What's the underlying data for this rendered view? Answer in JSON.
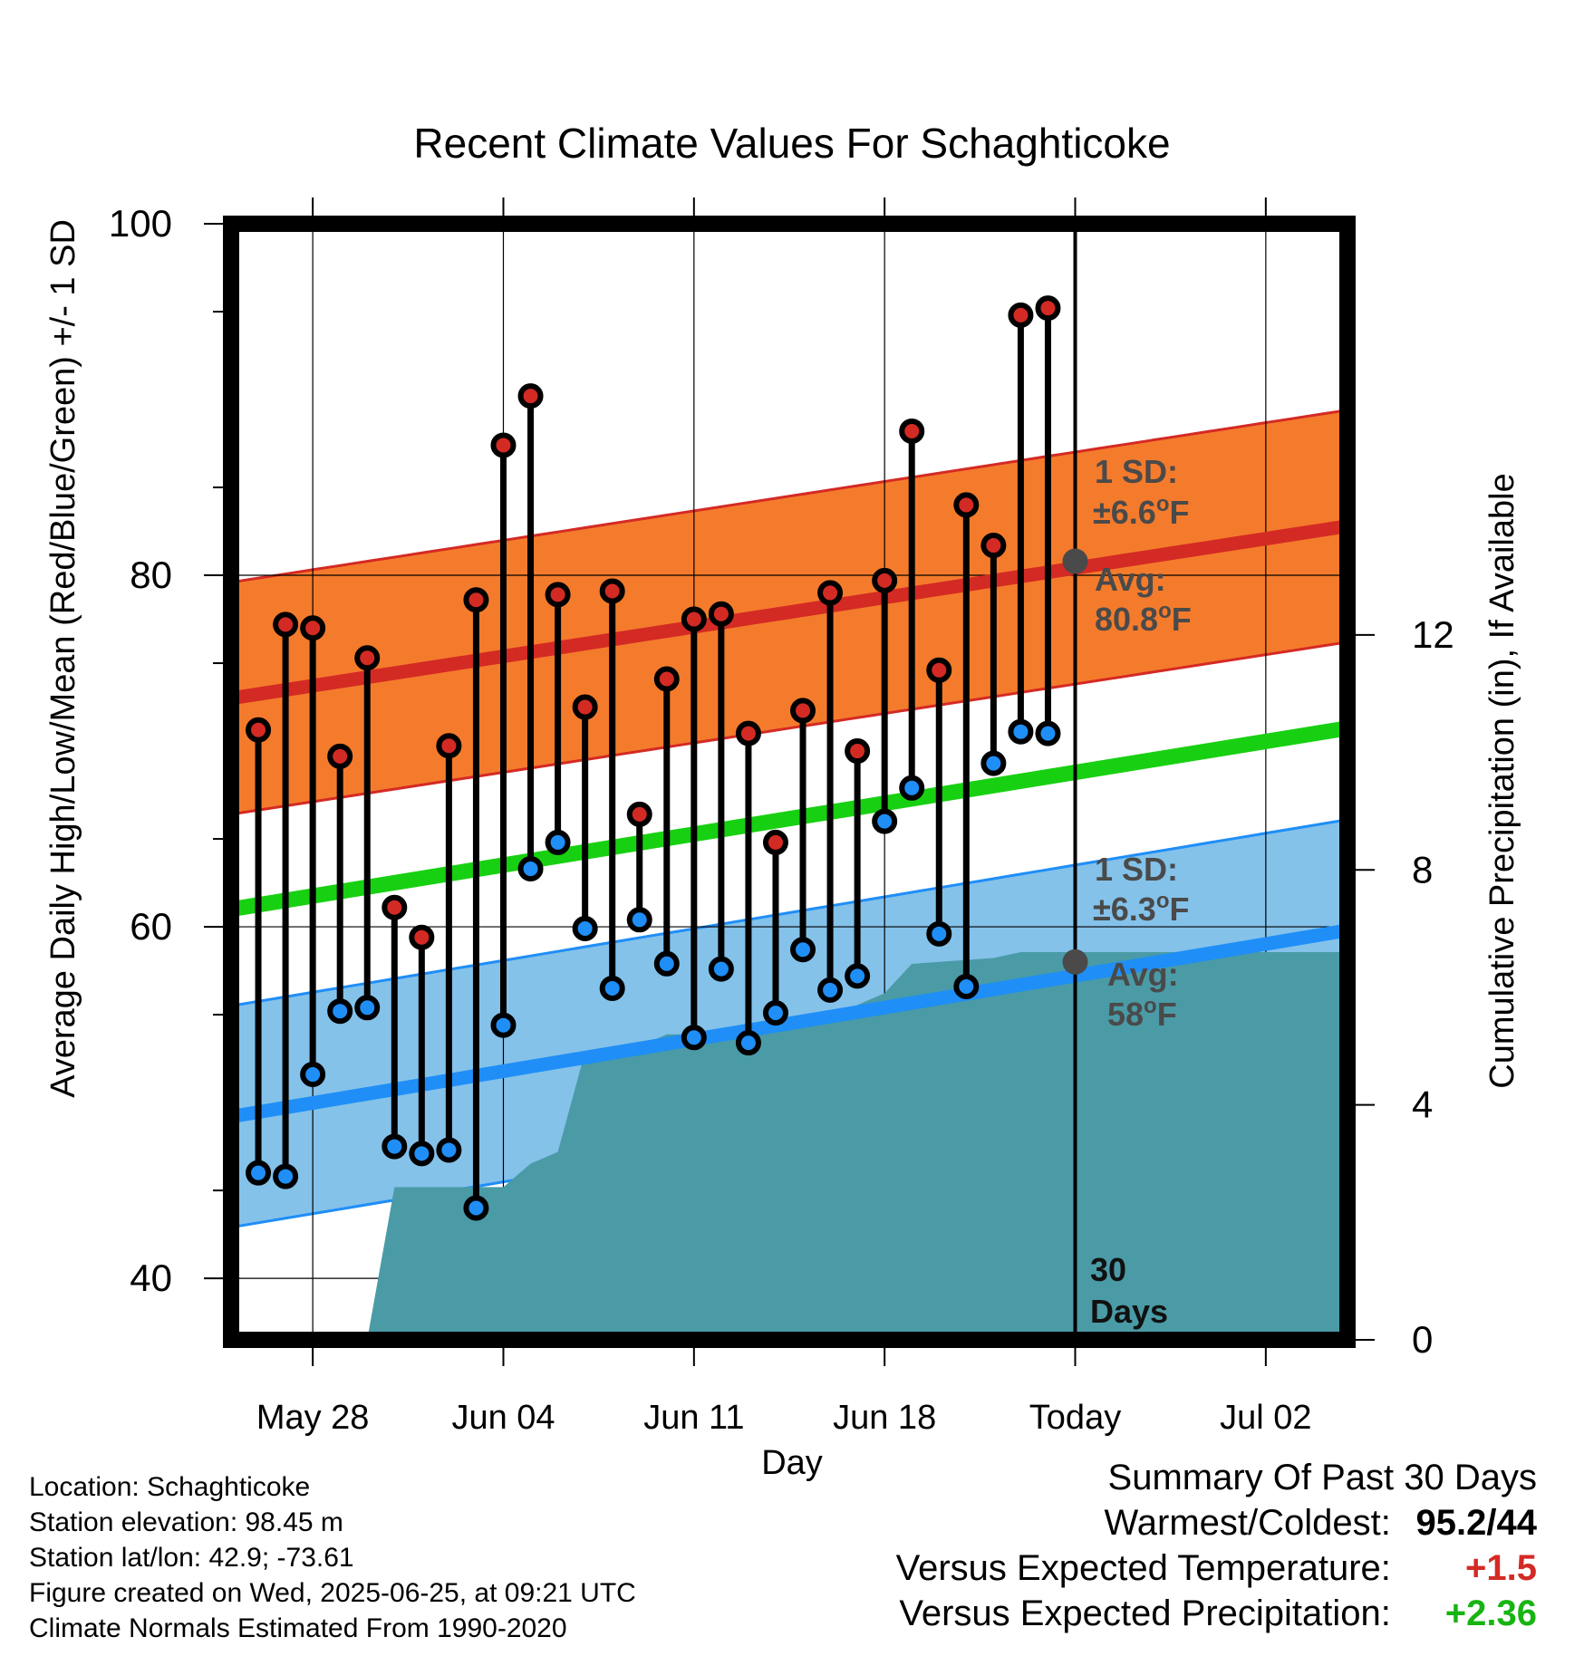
{
  "chart_data": {
    "type": "line",
    "title": "Recent Climate Values For Schaghticoke",
    "xlabel": "Day",
    "ylabel": "Average Daily High/Low/Mean (Red/Blue/Green) +/- 1 SD",
    "y2label": "Cumulative Precipitation (in), If Available",
    "ylim": [
      36.5,
      100
    ],
    "y2lim": [
      0,
      19
    ],
    "yticks": [
      40,
      60,
      80,
      100
    ],
    "y2ticks": [
      0,
      4,
      8,
      12
    ],
    "x_start": "May 25",
    "x_end": "Jul 05",
    "xticks": [
      {
        "date": "May 28",
        "label": "May 28"
      },
      {
        "date": "Jun 04",
        "label": "Jun 04"
      },
      {
        "date": "Jun 11",
        "label": "Jun 11"
      },
      {
        "date": "Jun 18",
        "label": "Jun 18"
      },
      {
        "date": "Jun 25",
        "label": "Today"
      },
      {
        "date": "Jul 02",
        "label": "Jul 02"
      }
    ],
    "grid": true,
    "days": [
      "May 26",
      "May 27",
      "May 28",
      "May 29",
      "May 30",
      "May 31",
      "Jun 01",
      "Jun 02",
      "Jun 03",
      "Jun 04",
      "Jun 05",
      "Jun 06",
      "Jun 07",
      "Jun 08",
      "Jun 09",
      "Jun 10",
      "Jun 11",
      "Jun 12",
      "Jun 13",
      "Jun 14",
      "Jun 15",
      "Jun 16",
      "Jun 17",
      "Jun 18",
      "Jun 19",
      "Jun 20",
      "Jun 21",
      "Jun 22",
      "Jun 23",
      "Jun 24"
    ],
    "highs": [
      71.2,
      77.2,
      77.0,
      69.7,
      75.3,
      61.1,
      59.4,
      70.3,
      78.6,
      87.4,
      90.2,
      78.9,
      72.5,
      79.1,
      66.4,
      74.1,
      77.5,
      77.8,
      71.0,
      64.8,
      72.3,
      79.0,
      70.0,
      79.7,
      88.2,
      74.6,
      84.0,
      81.7,
      94.8,
      95.2
    ],
    "lows": [
      46.0,
      45.8,
      51.6,
      55.2,
      55.4,
      47.5,
      47.1,
      47.3,
      44.0,
      54.4,
      63.3,
      64.8,
      59.9,
      56.5,
      60.4,
      57.9,
      53.7,
      57.6,
      53.4,
      55.1,
      58.7,
      56.4,
      57.2,
      66.0,
      67.9,
      59.6,
      56.6,
      69.3,
      71.1,
      71.0
    ],
    "normal_high_avg": {
      "start": 73.0,
      "end": 82.8,
      "today": 80.8
    },
    "normal_high_sd": 6.6,
    "normal_low_avg": {
      "start": 49.2,
      "end": 59.8,
      "today": 58.0
    },
    "normal_low_sd": 6.3,
    "normal_mean": {
      "start": 61.0,
      "end": 71.3
    },
    "precip_cumulative": [
      {
        "date": "May 30",
        "value": 0
      },
      {
        "date": "May 31",
        "value": 2.6
      },
      {
        "date": "Jun 04",
        "value": 2.6
      },
      {
        "date": "Jun 05",
        "value": 3.0
      },
      {
        "date": "Jun 06",
        "value": 3.2
      },
      {
        "date": "Jun 07",
        "value": 4.9
      },
      {
        "date": "Jun 08",
        "value": 4.9
      },
      {
        "date": "Jun 09",
        "value": 5.0
      },
      {
        "date": "Jun 10",
        "value": 5.2
      },
      {
        "date": "Jun 13",
        "value": 5.2
      },
      {
        "date": "Jun 14",
        "value": 5.4
      },
      {
        "date": "Jun 16",
        "value": 5.4
      },
      {
        "date": "Jun 17",
        "value": 5.7
      },
      {
        "date": "Jun 18",
        "value": 5.9
      },
      {
        "date": "Jun 19",
        "value": 6.4
      },
      {
        "date": "Jun 22",
        "value": 6.5
      },
      {
        "date": "Jun 23",
        "value": 6.6
      },
      {
        "date": "Jul 05",
        "value": 6.6
      }
    ],
    "annotations": {
      "high_sd_label": "1 SD:",
      "high_sd_value": "±6.6",
      "high_avg_label": "Avg:",
      "high_avg_value": "80.8",
      "low_sd_label": "1 SD:",
      "low_sd_value": "±6.3",
      "low_avg_label": "Avg:",
      "low_avg_value": "58",
      "unit_super": "o",
      "unit_letter": "F",
      "days_label_1": "30",
      "days_label_2": "Days"
    },
    "colors": {
      "high_band": "#f47b2c",
      "high_line": "#d42a24",
      "low_band": "#84c2ea",
      "low_line": "#1f8ef7",
      "mean_line": "#18d012",
      "precip": "#4a9ba6",
      "high_dot": "#d42a24",
      "low_dot": "#1f8ef7",
      "annotation": "#4a4a4a"
    }
  },
  "info": {
    "location": "Location: Schaghticoke",
    "elevation": "Station elevation: 98.45 m",
    "latlon": "Station lat/lon: 42.9; -73.61",
    "created": "Figure created on Wed, 2025-06-25, at 09:21 UTC",
    "normals": "Climate Normals Estimated From 1990-2020"
  },
  "summary": {
    "title": "Summary Of Past 30 Days",
    "warmest_label": "Warmest/Coldest:",
    "warmest_value": "95.2/44",
    "temp_label": "Versus Expected Temperature:",
    "temp_value": "+1.5",
    "temp_color": "#d42a24",
    "precip_label": "Versus Expected Precipitation:",
    "precip_value": "+2.36",
    "precip_color": "#18b412"
  }
}
